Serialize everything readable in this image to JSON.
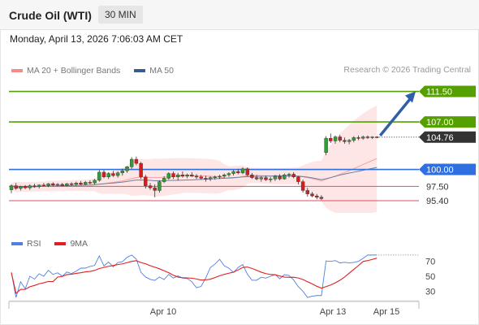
{
  "header": {
    "instrument": "Crude Oil (WTI)",
    "timeframe": "30 MIN",
    "datetime": "Monday, April 13, 2026 7:06:03 AM CET"
  },
  "legend": {
    "items": [
      {
        "label": "MA 20 + Bollinger Bands",
        "color": "#f28b8b"
      },
      {
        "label": "MA 50",
        "color": "#3a5a8c"
      }
    ],
    "copyright": "Research © 2026 Trading Central"
  },
  "chart_data": [
    {
      "type": "candlestick",
      "title": "Crude Oil (WTI)",
      "y_range": [
        93.6,
        113.0
      ],
      "x_labels": [
        "Apr 10",
        "Apr 13",
        "Apr 15"
      ],
      "levels": [
        {
          "value": 111.5,
          "label": "111.50",
          "kind": "resistance",
          "color": "#55a000"
        },
        {
          "value": 107.0,
          "label": "107.00",
          "kind": "resistance",
          "color": "#55a000"
        },
        {
          "value": 104.76,
          "label": "104.76",
          "kind": "last-price",
          "color": "#333333"
        },
        {
          "value": 100.0,
          "label": "100.00",
          "kind": "pivot",
          "color": "#2f6fe0"
        },
        {
          "value": 97.5,
          "label": "97.50",
          "kind": "support",
          "color": "#e05060"
        },
        {
          "value": 95.4,
          "label": "95.40",
          "kind": "support",
          "color": "#e05060"
        }
      ],
      "forecast": {
        "from": 104.76,
        "to": 111.5,
        "direction": "up"
      },
      "candles": [
        {
          "o": 97.0,
          "h": 97.8,
          "l": 96.5,
          "c": 97.6
        },
        {
          "o": 97.6,
          "h": 98.0,
          "l": 97.0,
          "c": 97.2
        },
        {
          "o": 97.2,
          "h": 97.6,
          "l": 96.9,
          "c": 97.5
        },
        {
          "o": 97.5,
          "h": 97.7,
          "l": 97.1,
          "c": 97.3
        },
        {
          "o": 97.3,
          "h": 97.8,
          "l": 97.0,
          "c": 97.6
        },
        {
          "o": 97.6,
          "h": 97.9,
          "l": 97.3,
          "c": 97.5
        },
        {
          "o": 97.5,
          "h": 97.8,
          "l": 97.2,
          "c": 97.7
        },
        {
          "o": 97.7,
          "h": 98.0,
          "l": 97.5,
          "c": 97.6
        },
        {
          "o": 97.6,
          "h": 98.0,
          "l": 97.4,
          "c": 97.9
        },
        {
          "o": 97.9,
          "h": 98.1,
          "l": 97.5,
          "c": 97.7
        },
        {
          "o": 97.7,
          "h": 98.0,
          "l": 97.5,
          "c": 97.8
        },
        {
          "o": 97.8,
          "h": 98.0,
          "l": 97.5,
          "c": 97.6
        },
        {
          "o": 97.6,
          "h": 98.0,
          "l": 97.5,
          "c": 97.9
        },
        {
          "o": 97.9,
          "h": 98.1,
          "l": 97.6,
          "c": 97.8
        },
        {
          "o": 97.8,
          "h": 98.2,
          "l": 97.6,
          "c": 98.0
        },
        {
          "o": 98.0,
          "h": 98.3,
          "l": 97.7,
          "c": 97.8
        },
        {
          "o": 97.8,
          "h": 98.3,
          "l": 97.7,
          "c": 98.1
        },
        {
          "o": 98.1,
          "h": 98.4,
          "l": 97.8,
          "c": 98.0
        },
        {
          "o": 98.0,
          "h": 98.6,
          "l": 97.8,
          "c": 98.4
        },
        {
          "o": 98.4,
          "h": 99.9,
          "l": 98.2,
          "c": 99.6
        },
        {
          "o": 99.6,
          "h": 99.9,
          "l": 98.7,
          "c": 98.9
        },
        {
          "o": 98.9,
          "h": 99.6,
          "l": 98.6,
          "c": 99.4
        },
        {
          "o": 99.4,
          "h": 99.8,
          "l": 98.9,
          "c": 99.1
        },
        {
          "o": 99.1,
          "h": 99.7,
          "l": 98.8,
          "c": 99.5
        },
        {
          "o": 99.5,
          "h": 100.1,
          "l": 99.1,
          "c": 99.8
        },
        {
          "o": 99.8,
          "h": 100.5,
          "l": 99.5,
          "c": 100.4
        },
        {
          "o": 100.4,
          "h": 101.8,
          "l": 100.1,
          "c": 101.5
        },
        {
          "o": 101.5,
          "h": 101.9,
          "l": 100.6,
          "c": 100.9
        },
        {
          "o": 100.9,
          "h": 101.1,
          "l": 98.6,
          "c": 98.9
        },
        {
          "o": 98.9,
          "h": 99.2,
          "l": 97.2,
          "c": 97.6
        },
        {
          "o": 97.6,
          "h": 98.0,
          "l": 97.0,
          "c": 97.3
        },
        {
          "o": 97.3,
          "h": 97.8,
          "l": 95.9,
          "c": 96.9
        },
        {
          "o": 96.9,
          "h": 98.4,
          "l": 96.6,
          "c": 98.2
        },
        {
          "o": 98.2,
          "h": 99.0,
          "l": 98.0,
          "c": 98.7
        },
        {
          "o": 98.7,
          "h": 99.6,
          "l": 98.5,
          "c": 99.4
        },
        {
          "o": 99.4,
          "h": 99.7,
          "l": 98.6,
          "c": 98.9
        },
        {
          "o": 98.9,
          "h": 99.5,
          "l": 98.4,
          "c": 99.2
        },
        {
          "o": 99.2,
          "h": 99.7,
          "l": 98.8,
          "c": 99.0
        },
        {
          "o": 99.0,
          "h": 99.4,
          "l": 98.7,
          "c": 99.2
        },
        {
          "o": 99.2,
          "h": 99.6,
          "l": 98.9,
          "c": 99.0
        },
        {
          "o": 99.0,
          "h": 99.3,
          "l": 98.6,
          "c": 98.9
        },
        {
          "o": 98.9,
          "h": 99.2,
          "l": 98.5,
          "c": 98.7
        },
        {
          "o": 98.7,
          "h": 99.1,
          "l": 98.2,
          "c": 98.6
        },
        {
          "o": 98.6,
          "h": 99.0,
          "l": 98.3,
          "c": 98.8
        },
        {
          "o": 98.8,
          "h": 99.1,
          "l": 98.5,
          "c": 98.9
        },
        {
          "o": 98.9,
          "h": 99.2,
          "l": 98.6,
          "c": 99.0
        },
        {
          "o": 99.0,
          "h": 99.4,
          "l": 98.7,
          "c": 99.2
        },
        {
          "o": 99.2,
          "h": 99.6,
          "l": 98.9,
          "c": 99.4
        },
        {
          "o": 99.4,
          "h": 99.9,
          "l": 99.1,
          "c": 99.7
        },
        {
          "o": 99.7,
          "h": 100.1,
          "l": 99.3,
          "c": 99.5
        },
        {
          "o": 99.5,
          "h": 100.3,
          "l": 99.3,
          "c": 100.1
        },
        {
          "o": 100.1,
          "h": 100.3,
          "l": 99.0,
          "c": 99.2
        },
        {
          "o": 99.2,
          "h": 99.5,
          "l": 98.6,
          "c": 98.8
        },
        {
          "o": 98.8,
          "h": 99.2,
          "l": 98.4,
          "c": 98.6
        },
        {
          "o": 98.6,
          "h": 99.0,
          "l": 98.2,
          "c": 98.8
        },
        {
          "o": 98.8,
          "h": 99.1,
          "l": 98.3,
          "c": 98.5
        },
        {
          "o": 98.5,
          "h": 98.9,
          "l": 98.1,
          "c": 98.6
        },
        {
          "o": 98.6,
          "h": 99.2,
          "l": 98.3,
          "c": 99.0
        },
        {
          "o": 99.0,
          "h": 99.3,
          "l": 98.4,
          "c": 98.6
        },
        {
          "o": 98.6,
          "h": 99.4,
          "l": 98.5,
          "c": 99.2
        },
        {
          "o": 99.2,
          "h": 99.5,
          "l": 98.8,
          "c": 99.3
        },
        {
          "o": 99.3,
          "h": 99.6,
          "l": 98.7,
          "c": 98.9
        },
        {
          "o": 98.9,
          "h": 99.0,
          "l": 97.8,
          "c": 98.2
        },
        {
          "o": 98.2,
          "h": 98.5,
          "l": 96.6,
          "c": 96.9
        },
        {
          "o": 96.9,
          "h": 97.3,
          "l": 96.0,
          "c": 96.4
        },
        {
          "o": 96.4,
          "h": 96.7,
          "l": 95.9,
          "c": 96.1
        },
        {
          "o": 96.1,
          "h": 96.4,
          "l": 95.6,
          "c": 95.9
        },
        {
          "o": 95.9,
          "h": 96.2,
          "l": 95.5,
          "c": 95.7
        },
        {
          "o": 102.5,
          "h": 104.9,
          "l": 102.1,
          "c": 104.6
        },
        {
          "o": 104.6,
          "h": 105.3,
          "l": 103.9,
          "c": 104.2
        },
        {
          "o": 104.2,
          "h": 105.0,
          "l": 103.8,
          "c": 104.8
        },
        {
          "o": 104.8,
          "h": 105.1,
          "l": 104.0,
          "c": 104.3
        },
        {
          "o": 104.3,
          "h": 104.7,
          "l": 103.8,
          "c": 104.1
        },
        {
          "o": 104.1,
          "h": 104.5,
          "l": 103.7,
          "c": 104.3
        },
        {
          "o": 104.3,
          "h": 104.9,
          "l": 104.0,
          "c": 104.7
        },
        {
          "o": 104.7,
          "h": 105.0,
          "l": 104.3,
          "c": 104.6
        },
        {
          "o": 104.6,
          "h": 105.0,
          "l": 104.4,
          "c": 104.8
        },
        {
          "o": 104.8,
          "h": 105.0,
          "l": 104.5,
          "c": 104.7
        },
        {
          "o": 104.7,
          "h": 104.9,
          "l": 104.5,
          "c": 104.8
        },
        {
          "o": 104.8,
          "h": 104.9,
          "l": 104.6,
          "c": 104.76
        }
      ]
    },
    {
      "type": "line",
      "title": "RSI",
      "y_ticks": [
        70,
        50,
        30
      ],
      "series": [
        {
          "name": "RSI",
          "color": "#4f7fe0"
        },
        {
          "name": "9MA",
          "color": "#e02020"
        }
      ]
    }
  ],
  "rsi_legend": {
    "items": [
      {
        "label": "RSI",
        "color": "#4f7fe0"
      },
      {
        "label": "9MA",
        "color": "#e02020"
      }
    ]
  }
}
